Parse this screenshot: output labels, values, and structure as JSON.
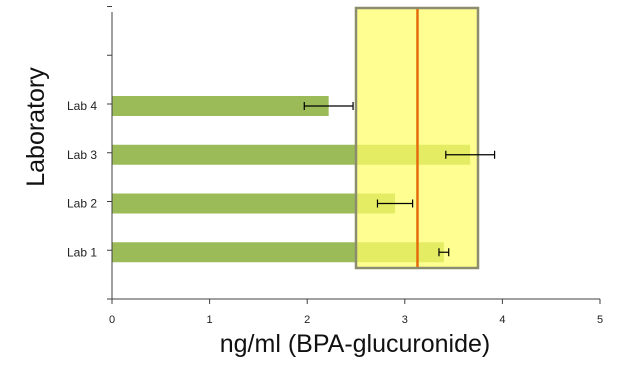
{
  "chart_data": {
    "type": "bar",
    "orientation": "horizontal",
    "title": "",
    "xlabel": "ng/ml (BPA-glucuronide)",
    "ylabel": "Laboratory",
    "xlim": [
      0,
      5
    ],
    "xticks": [
      "0",
      "1",
      "2",
      "3",
      "4",
      "5"
    ],
    "categories": [
      "Lab 1",
      "Lab 2",
      "Lab 3",
      "Lab 4"
    ],
    "values": [
      3.4,
      2.9,
      3.67,
      2.22
    ],
    "errors": [
      0.05,
      0.18,
      0.25,
      0.25
    ],
    "reference_band": {
      "low": 2.5,
      "high": 3.75,
      "center": 3.13
    },
    "grid": false,
    "legend": "none",
    "colors": {
      "bar": "#9BBB59",
      "band_fill": "#FFFF66",
      "band_border": "#8C8C6E",
      "reference_line": "#E46C0A",
      "error_bar": "#000000",
      "axis": "#404040"
    }
  }
}
